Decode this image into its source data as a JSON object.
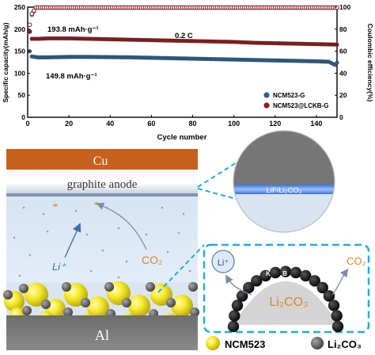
{
  "chart_data": {
    "type": "scatter",
    "xlabel": "Cycle number",
    "ylabel_left": "Specific capacity(mAh/g)",
    "ylabel_right": "Coulombic efficiency(%)",
    "x_ticks": [
      "0",
      "20",
      "40",
      "60",
      "80",
      "100",
      "120",
      "140"
    ],
    "y_left_ticks": [
      "0",
      "50",
      "100",
      "150",
      "200",
      "250"
    ],
    "y_right_ticks": [
      "0",
      "20",
      "40",
      "60",
      "80",
      "100"
    ],
    "xlim": [
      0,
      150
    ],
    "ylim_left": [
      0,
      250
    ],
    "ylim_right": [
      0,
      100
    ],
    "annotations": {
      "initial_lckb": "193.8 mAh·g⁻¹",
      "initial_g": "149.8 mAh·g⁻¹",
      "rate": "0.2 C"
    },
    "legend_position": "lower-right",
    "series": [
      {
        "name": "NCM523-G",
        "color": "#2e5f8a",
        "capacity": [
          [
            1,
            149.8
          ],
          [
            2,
            138
          ],
          [
            5,
            136
          ],
          [
            10,
            136
          ],
          [
            20,
            137
          ],
          [
            30,
            137
          ],
          [
            40,
            136.5
          ],
          [
            50,
            136
          ],
          [
            60,
            135
          ],
          [
            70,
            134
          ],
          [
            80,
            133
          ],
          [
            90,
            132
          ],
          [
            100,
            131
          ],
          [
            110,
            130
          ],
          [
            120,
            129
          ],
          [
            130,
            128
          ],
          [
            140,
            127
          ],
          [
            146,
            126
          ],
          [
            149,
            119
          ],
          [
            150,
            124
          ]
        ],
        "efficiency": [
          [
            1,
            78
          ],
          [
            2,
            93
          ],
          [
            4,
            99.5
          ],
          [
            150,
            99.5
          ]
        ]
      },
      {
        "name": "NCM523@LCKB-G",
        "color": "#8b1e1e",
        "capacity": [
          [
            1,
            193.8
          ],
          [
            2,
            178
          ],
          [
            5,
            178
          ],
          [
            10,
            179
          ],
          [
            20,
            179
          ],
          [
            30,
            178
          ],
          [
            40,
            177
          ],
          [
            50,
            176
          ],
          [
            60,
            175
          ],
          [
            70,
            174
          ],
          [
            80,
            173
          ],
          [
            90,
            172
          ],
          [
            100,
            171
          ],
          [
            110,
            169
          ],
          [
            120,
            168
          ],
          [
            130,
            167
          ],
          [
            140,
            166
          ],
          [
            150,
            165
          ]
        ],
        "efficiency": [
          [
            1,
            84
          ],
          [
            2,
            94
          ],
          [
            4,
            99.7
          ],
          [
            150,
            99.7
          ]
        ]
      }
    ]
  },
  "diagram": {
    "cu_label": "Cu",
    "anode_label": "graphite anode",
    "al_label": "Al",
    "li_label": "Li⁺",
    "co2_label": "CO₂",
    "lif_label": "LiF/Li₂CO₃",
    "li_circle_label": "Li⁺",
    "co2_right_label": "CO₂",
    "k_label": "K",
    "b_label": "B",
    "li2co3_center_label": "Li₂CO₃",
    "legend_ncm": "NCM523",
    "legend_li2co3": "Li₂CO₃",
    "colors": {
      "copper": "#c8611f",
      "anode_blue": "#dbe8f5",
      "particle_yellow": "#f5e92a",
      "dash_blue": "#29a9e0",
      "co2_orange": "#d9862a"
    }
  }
}
